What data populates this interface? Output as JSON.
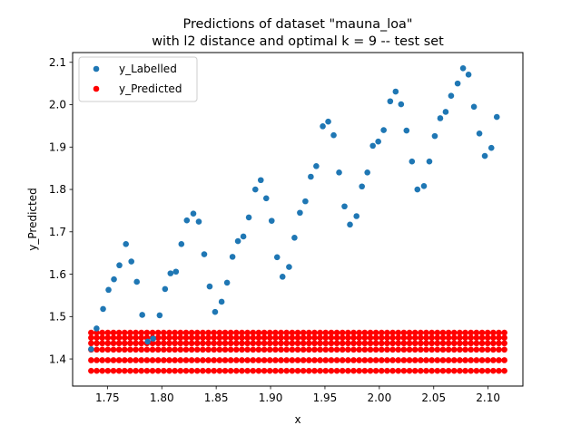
{
  "chart_data": {
    "type": "scatter",
    "title_lines": [
      "Predictions of dataset \"mauna_loa\"",
      "with l2 distance and optimal k = 9 -- test set"
    ],
    "xlabel": "x",
    "ylabel": "y_Predicted",
    "xlim": [
      1.718,
      2.132
    ],
    "ylim": [
      1.336,
      2.123
    ],
    "xticks": [
      1.75,
      1.8,
      1.85,
      1.9,
      1.95,
      2.0,
      2.05,
      2.1
    ],
    "xtick_labels": [
      "1.75",
      "1.80",
      "1.85",
      "1.90",
      "1.95",
      "2.00",
      "2.05",
      "2.10"
    ],
    "yticks": [
      1.4,
      1.5,
      1.6,
      1.7,
      1.8,
      1.9,
      2.0,
      2.1
    ],
    "ytick_labels": [
      "1.4",
      "1.5",
      "1.6",
      "1.7",
      "1.8",
      "1.9",
      "2.0",
      "2.1"
    ],
    "legend_position": "upper-left",
    "grid": false,
    "series": [
      {
        "name": "y_Labelled",
        "color": "#1f77b4",
        "points": [
          [
            1.735,
            1.423
          ],
          [
            1.74,
            1.472
          ],
          [
            1.746,
            1.518
          ],
          [
            1.751,
            1.563
          ],
          [
            1.756,
            1.588
          ],
          [
            1.761,
            1.621
          ],
          [
            1.767,
            1.671
          ],
          [
            1.772,
            1.63
          ],
          [
            1.777,
            1.582
          ],
          [
            1.782,
            1.504
          ],
          [
            1.787,
            1.441
          ],
          [
            1.792,
            1.448
          ],
          [
            1.798,
            1.503
          ],
          [
            1.803,
            1.565
          ],
          [
            1.808,
            1.602
          ],
          [
            1.813,
            1.606
          ],
          [
            1.818,
            1.671
          ],
          [
            1.823,
            1.727
          ],
          [
            1.829,
            1.743
          ],
          [
            1.834,
            1.724
          ],
          [
            1.839,
            1.647
          ],
          [
            1.844,
            1.571
          ],
          [
            1.849,
            1.511
          ],
          [
            1.855,
            1.535
          ],
          [
            1.86,
            1.58
          ],
          [
            1.865,
            1.641
          ],
          [
            1.87,
            1.678
          ],
          [
            1.875,
            1.689
          ],
          [
            1.88,
            1.734
          ],
          [
            1.886,
            1.8
          ],
          [
            1.891,
            1.822
          ],
          [
            1.896,
            1.779
          ],
          [
            1.901,
            1.726
          ],
          [
            1.906,
            1.64
          ],
          [
            1.911,
            1.594
          ],
          [
            1.917,
            1.617
          ],
          [
            1.922,
            1.686
          ],
          [
            1.927,
            1.745
          ],
          [
            1.932,
            1.772
          ],
          [
            1.937,
            1.83
          ],
          [
            1.942,
            1.855
          ],
          [
            1.948,
            1.949
          ],
          [
            1.953,
            1.96
          ],
          [
            1.958,
            1.928
          ],
          [
            1.963,
            1.84
          ],
          [
            1.968,
            1.76
          ],
          [
            1.973,
            1.717
          ],
          [
            1.979,
            1.737
          ],
          [
            1.984,
            1.807
          ],
          [
            1.989,
            1.84
          ],
          [
            1.994,
            1.903
          ],
          [
            1.999,
            1.913
          ],
          [
            2.004,
            1.94
          ],
          [
            2.01,
            2.008
          ],
          [
            2.015,
            2.031
          ],
          [
            2.02,
            2.001
          ],
          [
            2.025,
            1.939
          ],
          [
            2.03,
            1.866
          ],
          [
            2.035,
            1.8
          ],
          [
            2.041,
            1.808
          ],
          [
            2.046,
            1.866
          ],
          [
            2.051,
            1.926
          ],
          [
            2.056,
            1.968
          ],
          [
            2.061,
            1.983
          ],
          [
            2.066,
            2.021
          ],
          [
            2.072,
            2.05
          ],
          [
            2.077,
            2.086
          ],
          [
            2.082,
            2.071
          ],
          [
            2.087,
            1.995
          ],
          [
            2.092,
            1.932
          ],
          [
            2.097,
            1.879
          ],
          [
            2.103,
            1.898
          ],
          [
            2.108,
            1.971
          ]
        ]
      },
      {
        "name": "y_Predicted",
        "color": "#ff0000",
        "x_start": 1.735,
        "x_end": 2.115,
        "x_count": 75,
        "y_levels": [
          1.372,
          1.397,
          1.422,
          1.437,
          1.45,
          1.462
        ]
      }
    ]
  }
}
